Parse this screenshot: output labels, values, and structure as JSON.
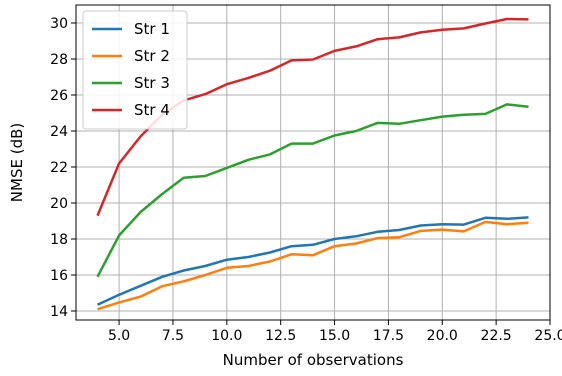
{
  "chart_data": {
    "type": "line",
    "title": "",
    "xlabel": "Number of observations",
    "ylabel": "NMSE (dB)",
    "xlim": [
      3,
      25
    ],
    "ylim": [
      13.5,
      31
    ],
    "xticks": [
      5.0,
      7.5,
      10.0,
      12.5,
      15.0,
      17.5,
      20.0,
      22.5,
      25.0
    ],
    "xtick_labels": [
      "5.0",
      "7.5",
      "10.0",
      "12.5",
      "15.0",
      "17.5",
      "20.0",
      "22.5",
      "25.0"
    ],
    "yticks": [
      14,
      16,
      18,
      20,
      22,
      24,
      26,
      28,
      30
    ],
    "ytick_labels": [
      "14",
      "16",
      "18",
      "20",
      "22",
      "24",
      "26",
      "28",
      "30"
    ],
    "grid": true,
    "legend_position": "top-left",
    "x": [
      4,
      5,
      6,
      7,
      8,
      9,
      10,
      11,
      12,
      13,
      14,
      15,
      16,
      17,
      18,
      19,
      20,
      21,
      22,
      23,
      24
    ],
    "series": [
      {
        "name": "Str 1",
        "color": "#1f77b4",
        "values": [
          14.35,
          14.9,
          15.4,
          15.9,
          16.25,
          16.5,
          16.85,
          17.0,
          17.25,
          17.6,
          17.68,
          18.0,
          18.15,
          18.4,
          18.5,
          18.75,
          18.82,
          18.8,
          19.18,
          19.12,
          19.2
        ]
      },
      {
        "name": "Str 2",
        "color": "#ff7f0e",
        "values": [
          14.1,
          14.48,
          14.8,
          15.38,
          15.65,
          16.0,
          16.4,
          16.5,
          16.75,
          17.15,
          17.1,
          17.6,
          17.75,
          18.05,
          18.1,
          18.45,
          18.52,
          18.42,
          18.95,
          18.82,
          18.9
        ]
      },
      {
        "name": "Str 3",
        "color": "#2ca02c",
        "values": [
          15.9,
          18.2,
          19.5,
          20.5,
          21.4,
          21.5,
          21.95,
          22.4,
          22.7,
          23.3,
          23.3,
          23.75,
          24.0,
          24.45,
          24.4,
          24.6,
          24.8,
          24.9,
          24.95,
          25.48,
          25.35
        ]
      },
      {
        "name": "Str 4",
        "color": "#d62728",
        "values": [
          19.3,
          22.2,
          23.7,
          24.9,
          25.7,
          26.05,
          26.6,
          26.95,
          27.35,
          27.92,
          27.97,
          28.45,
          28.7,
          29.1,
          29.2,
          29.48,
          29.62,
          29.7,
          29.97,
          30.22,
          30.2
        ]
      }
    ]
  }
}
